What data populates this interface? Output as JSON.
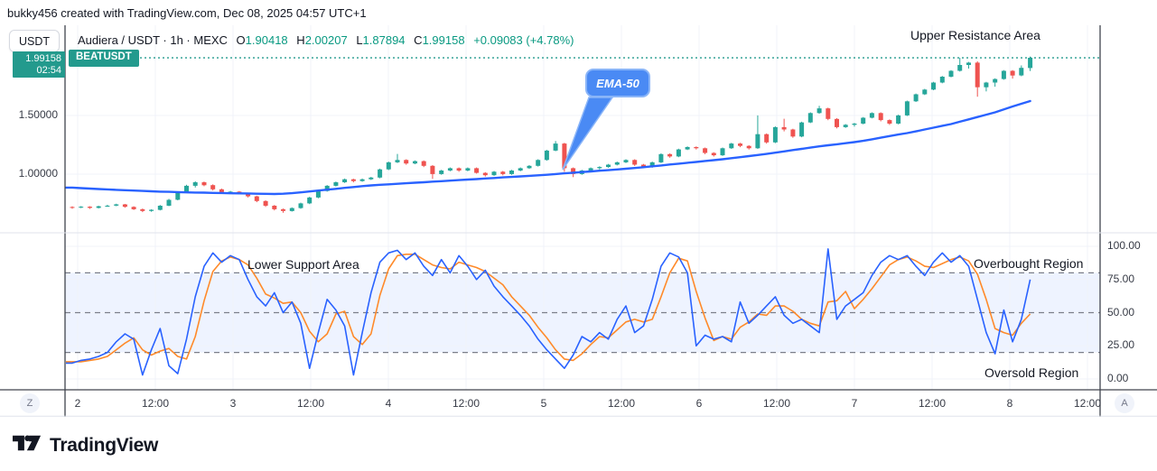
{
  "attribution": "bukky456 created with TradingView.com, Dec 08, 2025 04:57 UTC+1",
  "header": {
    "symbol_button": "USDT",
    "market_label": "Audiera / USDT · 1h · MEXC",
    "ohlc": {
      "o_label": "O",
      "o": "1.90418",
      "h_label": "H",
      "h": "2.00207",
      "l_label": "L",
      "l": "1.87894",
      "c_label": "C",
      "c": "1.99158"
    },
    "change": "+0.09083 (+4.78%)"
  },
  "last_price_badge": {
    "price": "1.99158",
    "time": "02:54"
  },
  "symbol_badge": "BEATUSDT",
  "annotations": {
    "upper_resistance": "Upper Resistance Area",
    "ema_callout": "EMA-50",
    "lower_support": "Lower Support Area",
    "overbought": "Overbought Region",
    "oversold": "Oversold Region"
  },
  "price_scale": {
    "side": "left",
    "labels": [
      {
        "text": "1.50000",
        "value": 1.5
      },
      {
        "text": "1.00000",
        "value": 1.0
      }
    ]
  },
  "indicator_scale": {
    "side": "right",
    "labels": [
      {
        "text": "100.00",
        "value": 100
      },
      {
        "text": "75.00",
        "value": 75
      },
      {
        "text": "50.00",
        "value": 50
      },
      {
        "text": "25.00",
        "value": 25
      },
      {
        "text": "0.00",
        "value": 0
      }
    ]
  },
  "time_axis": {
    "labels": [
      "2",
      "12:00",
      "3",
      "12:00",
      "4",
      "12:00",
      "5",
      "12:00",
      "6",
      "12:00",
      "7",
      "12:00",
      "8",
      "12:00"
    ],
    "left_button": "Z",
    "right_button": "A"
  },
  "logo_text": "TradingView",
  "colors": {
    "up": "#26a69a",
    "down": "#ef5350",
    "ema": "#2962ff",
    "stoch_k": "#2962ff",
    "stoch_d": "#ff8a2a",
    "band": "rgba(41,98,255,0.08)",
    "grid": "#f0f3fa",
    "dashed_level": "#7b7f8a",
    "axis_line": "#40444d",
    "separator": "#e0e3eb",
    "teal": "#239a8d",
    "value_text": "#089981",
    "callout_fill": "#4a8af4",
    "callout_border": "#8ab5f8"
  },
  "chart_data": {
    "type": "candlestick",
    "symbol": "Audiera / USDT (BEATUSDT)",
    "interval": "1h",
    "exchange": "MEXC",
    "visible_days": [
      "2",
      "3",
      "4",
      "5",
      "6",
      "7",
      "8"
    ],
    "last_bar": {
      "open": 1.90418,
      "high": 2.00207,
      "low": 1.87894,
      "close": 1.99158,
      "change": "+0.09083 (+4.78%)"
    },
    "price_pane": {
      "ylim": [
        0.55,
        2.1
      ],
      "gridline_prices": [
        1.0,
        1.5
      ],
      "current_price_line": 1.99158,
      "candles_ohlc": [
        [
          0.72,
          0.726,
          0.705,
          0.715
        ],
        [
          0.715,
          0.728,
          0.71,
          0.722
        ],
        [
          0.722,
          0.727,
          0.704,
          0.712
        ],
        [
          0.712,
          0.731,
          0.708,
          0.726
        ],
        [
          0.726,
          0.739,
          0.721,
          0.731
        ],
        [
          0.731,
          0.748,
          0.727,
          0.742
        ],
        [
          0.742,
          0.746,
          0.714,
          0.721
        ],
        [
          0.721,
          0.726,
          0.695,
          0.701
        ],
        [
          0.701,
          0.707,
          0.676,
          0.686
        ],
        [
          0.686,
          0.701,
          0.679,
          0.696
        ],
        [
          0.696,
          0.737,
          0.691,
          0.731
        ],
        [
          0.731,
          0.789,
          0.727,
          0.781
        ],
        [
          0.781,
          0.853,
          0.777,
          0.846
        ],
        [
          0.846,
          0.909,
          0.841,
          0.901
        ],
        [
          0.901,
          0.939,
          0.886,
          0.931
        ],
        [
          0.931,
          0.937,
          0.897,
          0.906
        ],
        [
          0.906,
          0.913,
          0.861,
          0.871
        ],
        [
          0.871,
          0.877,
          0.837,
          0.846
        ],
        [
          0.846,
          0.857,
          0.839,
          0.851
        ],
        [
          0.851,
          0.856,
          0.827,
          0.836
        ],
        [
          0.836,
          0.841,
          0.801,
          0.811
        ],
        [
          0.811,
          0.816,
          0.761,
          0.771
        ],
        [
          0.771,
          0.777,
          0.721,
          0.731
        ],
        [
          0.731,
          0.737,
          0.691,
          0.701
        ],
        [
          0.701,
          0.707,
          0.671,
          0.686
        ],
        [
          0.686,
          0.717,
          0.681,
          0.711
        ],
        [
          0.711,
          0.757,
          0.705,
          0.751
        ],
        [
          0.751,
          0.807,
          0.745,
          0.801
        ],
        [
          0.801,
          0.862,
          0.795,
          0.856
        ],
        [
          0.856,
          0.907,
          0.851,
          0.901
        ],
        [
          0.901,
          0.937,
          0.895,
          0.931
        ],
        [
          0.931,
          0.962,
          0.925,
          0.956
        ],
        [
          0.956,
          0.961,
          0.93,
          0.941
        ],
        [
          0.941,
          0.962,
          0.935,
          0.956
        ],
        [
          0.956,
          0.977,
          0.95,
          0.971
        ],
        [
          0.971,
          1.047,
          0.965,
          1.041
        ],
        [
          1.041,
          1.107,
          1.035,
          1.101
        ],
        [
          1.101,
          1.172,
          1.095,
          1.121
        ],
        [
          1.121,
          1.127,
          1.08,
          1.091
        ],
        [
          1.091,
          1.117,
          1.085,
          1.111
        ],
        [
          1.111,
          1.117,
          1.06,
          1.071
        ],
        [
          1.071,
          1.077,
          0.96,
          1.001
        ],
        [
          1.001,
          1.037,
          0.995,
          1.031
        ],
        [
          1.031,
          1.057,
          1.025,
          1.051
        ],
        [
          1.051,
          1.057,
          1.02,
          1.031
        ],
        [
          1.031,
          1.057,
          1.025,
          1.051
        ],
        [
          1.051,
          1.057,
          1.005,
          1.011
        ],
        [
          1.011,
          1.017,
          0.98,
          0.991
        ],
        [
          0.991,
          1.027,
          0.985,
          1.021
        ],
        [
          1.021,
          1.027,
          0.99,
          1.001
        ],
        [
          1.001,
          1.037,
          0.995,
          1.031
        ],
        [
          1.031,
          1.057,
          1.025,
          1.051
        ],
        [
          1.051,
          1.077,
          1.045,
          1.071
        ],
        [
          1.071,
          1.127,
          1.065,
          1.121
        ],
        [
          1.121,
          1.207,
          1.115,
          1.201
        ],
        [
          1.201,
          1.282,
          1.195,
          1.261
        ],
        [
          1.261,
          1.267,
          1.02,
          1.051
        ],
        [
          1.051,
          1.057,
          0.975,
          1.001
        ],
        [
          1.001,
          1.037,
          0.995,
          1.031
        ],
        [
          1.031,
          1.057,
          1.025,
          1.051
        ],
        [
          1.051,
          1.067,
          1.04,
          1.061
        ],
        [
          1.061,
          1.087,
          1.055,
          1.081
        ],
        [
          1.081,
          1.107,
          1.075,
          1.101
        ],
        [
          1.101,
          1.127,
          1.095,
          1.121
        ],
        [
          1.121,
          1.127,
          1.07,
          1.081
        ],
        [
          1.081,
          1.087,
          1.05,
          1.061
        ],
        [
          1.061,
          1.107,
          1.055,
          1.101
        ],
        [
          1.101,
          1.177,
          1.095,
          1.171
        ],
        [
          1.171,
          1.177,
          1.14,
          1.151
        ],
        [
          1.151,
          1.217,
          1.145,
          1.211
        ],
        [
          1.211,
          1.237,
          1.205,
          1.231
        ],
        [
          1.231,
          1.237,
          1.21,
          1.221
        ],
        [
          1.221,
          1.227,
          1.17,
          1.181
        ],
        [
          1.181,
          1.187,
          1.15,
          1.161
        ],
        [
          1.161,
          1.227,
          1.155,
          1.221
        ],
        [
          1.221,
          1.267,
          1.215,
          1.261
        ],
        [
          1.261,
          1.267,
          1.23,
          1.241
        ],
        [
          1.241,
          1.247,
          1.21,
          1.221
        ],
        [
          1.221,
          1.501,
          1.215,
          1.341
        ],
        [
          1.341,
          1.347,
          1.26,
          1.271
        ],
        [
          1.271,
          1.407,
          1.265,
          1.401
        ],
        [
          1.401,
          1.472,
          1.365,
          1.381
        ],
        [
          1.381,
          1.387,
          1.31,
          1.321
        ],
        [
          1.321,
          1.447,
          1.315,
          1.441
        ],
        [
          1.441,
          1.527,
          1.435,
          1.521
        ],
        [
          1.521,
          1.582,
          1.515,
          1.561
        ],
        [
          1.561,
          1.567,
          1.46,
          1.471
        ],
        [
          1.471,
          1.477,
          1.39,
          1.401
        ],
        [
          1.401,
          1.427,
          1.395,
          1.421
        ],
        [
          1.421,
          1.437,
          1.405,
          1.431
        ],
        [
          1.431,
          1.487,
          1.425,
          1.481
        ],
        [
          1.481,
          1.527,
          1.475,
          1.521
        ],
        [
          1.521,
          1.527,
          1.45,
          1.461
        ],
        [
          1.461,
          1.467,
          1.42,
          1.431
        ],
        [
          1.431,
          1.507,
          1.425,
          1.501
        ],
        [
          1.501,
          1.627,
          1.495,
          1.621
        ],
        [
          1.621,
          1.687,
          1.615,
          1.681
        ],
        [
          1.681,
          1.727,
          1.675,
          1.721
        ],
        [
          1.721,
          1.787,
          1.715,
          1.781
        ],
        [
          1.781,
          1.837,
          1.775,
          1.831
        ],
        [
          1.831,
          1.887,
          1.825,
          1.881
        ],
        [
          1.881,
          1.992,
          1.875,
          1.931
        ],
        [
          1.931,
          1.957,
          1.9,
          1.951
        ],
        [
          1.951,
          1.962,
          1.66,
          1.741
        ],
        [
          1.741,
          1.787,
          1.705,
          1.781
        ],
        [
          1.781,
          1.817,
          1.745,
          1.811
        ],
        [
          1.811,
          1.887,
          1.805,
          1.881
        ],
        [
          1.881,
          1.887,
          1.815,
          1.841
        ],
        [
          1.841,
          1.927,
          1.835,
          1.906
        ],
        [
          1.904,
          2.002,
          1.879,
          1.992
        ]
      ],
      "ema50": [
        0.885,
        0.881,
        0.877,
        0.873,
        0.87,
        0.866,
        0.863,
        0.86,
        0.857,
        0.854,
        0.851,
        0.849,
        0.847,
        0.845,
        0.843,
        0.842,
        0.84,
        0.839,
        0.837,
        0.836,
        0.835,
        0.833,
        0.832,
        0.831,
        0.833,
        0.838,
        0.845,
        0.852,
        0.86,
        0.868,
        0.875,
        0.883,
        0.89,
        0.898,
        0.904,
        0.909,
        0.913,
        0.918,
        0.922,
        0.927,
        0.931,
        0.936,
        0.94,
        0.945,
        0.949,
        0.954,
        0.958,
        0.963,
        0.967,
        0.972,
        0.976,
        0.981,
        0.985,
        0.99,
        0.995,
        1.001,
        1.007,
        1.012,
        1.018,
        1.023,
        1.029,
        1.034,
        1.04,
        1.046,
        1.052,
        1.059,
        1.067,
        1.074,
        1.082,
        1.089,
        1.097,
        1.104,
        1.112,
        1.119,
        1.127,
        1.136,
        1.145,
        1.154,
        1.163,
        1.172,
        1.183,
        1.194,
        1.205,
        1.215,
        1.226,
        1.237,
        1.246,
        1.255,
        1.264,
        1.273,
        1.284,
        1.297,
        1.311,
        1.325,
        1.338,
        1.35,
        1.365,
        1.381,
        1.396,
        1.412,
        1.427,
        1.447,
        1.467,
        1.487,
        1.507,
        1.527,
        1.552,
        1.577,
        1.6,
        1.623
      ]
    },
    "indicator_pane": {
      "type": "stochastic",
      "range": [
        0,
        100
      ],
      "levels": {
        "overbought": 80,
        "middle": 50,
        "oversold": 20
      },
      "k_percent": [
        12,
        14,
        15,
        17,
        20,
        28,
        34,
        30,
        3,
        22,
        38,
        10,
        4,
        30,
        62,
        85,
        95,
        88,
        93,
        90,
        75,
        62,
        55,
        65,
        50,
        58,
        42,
        8,
        35,
        60,
        52,
        40,
        3,
        35,
        65,
        88,
        95,
        97,
        90,
        95,
        85,
        78,
        90,
        80,
        93,
        85,
        75,
        82,
        70,
        62,
        55,
        48,
        40,
        30,
        22,
        15,
        8,
        18,
        32,
        28,
        35,
        30,
        45,
        55,
        35,
        40,
        60,
        85,
        95,
        92,
        80,
        25,
        33,
        30,
        32,
        28,
        58,
        42,
        48,
        55,
        62,
        48,
        42,
        45,
        40,
        35,
        98,
        45,
        55,
        60,
        65,
        78,
        88,
        93,
        90,
        93,
        85,
        78,
        88,
        95,
        88,
        93,
        85,
        60,
        35,
        19,
        52,
        28,
        45,
        75
      ],
      "d_percent": [
        13,
        13,
        14,
        15,
        17,
        22,
        27,
        31,
        22,
        18,
        21,
        23,
        17,
        15,
        32,
        59,
        81,
        89,
        92,
        90,
        86,
        76,
        64,
        61,
        57,
        58,
        50,
        36,
        28,
        34,
        49,
        51,
        32,
        26,
        34,
        63,
        83,
        93,
        94,
        94,
        90,
        86,
        84,
        83,
        88,
        86,
        84,
        81,
        76,
        71,
        62,
        55,
        48,
        39,
        31,
        22,
        15,
        14,
        19,
        26,
        32,
        31,
        37,
        43,
        45,
        43,
        45,
        62,
        80,
        91,
        89,
        66,
        46,
        29,
        32,
        30,
        39,
        43,
        49,
        48,
        55,
        55,
        51,
        45,
        42,
        40,
        58,
        59,
        66,
        53,
        60,
        68,
        77,
        86,
        90,
        92,
        89,
        85,
        84,
        87,
        90,
        92,
        89,
        79,
        60,
        38,
        35,
        33,
        42,
        49
      ]
    },
    "x_ticks": [
      "2",
      "12:00",
      "3",
      "12:00",
      "4",
      "12:00",
      "5",
      "12:00",
      "6",
      "12:00",
      "7",
      "12:00",
      "8",
      "12:00"
    ]
  }
}
